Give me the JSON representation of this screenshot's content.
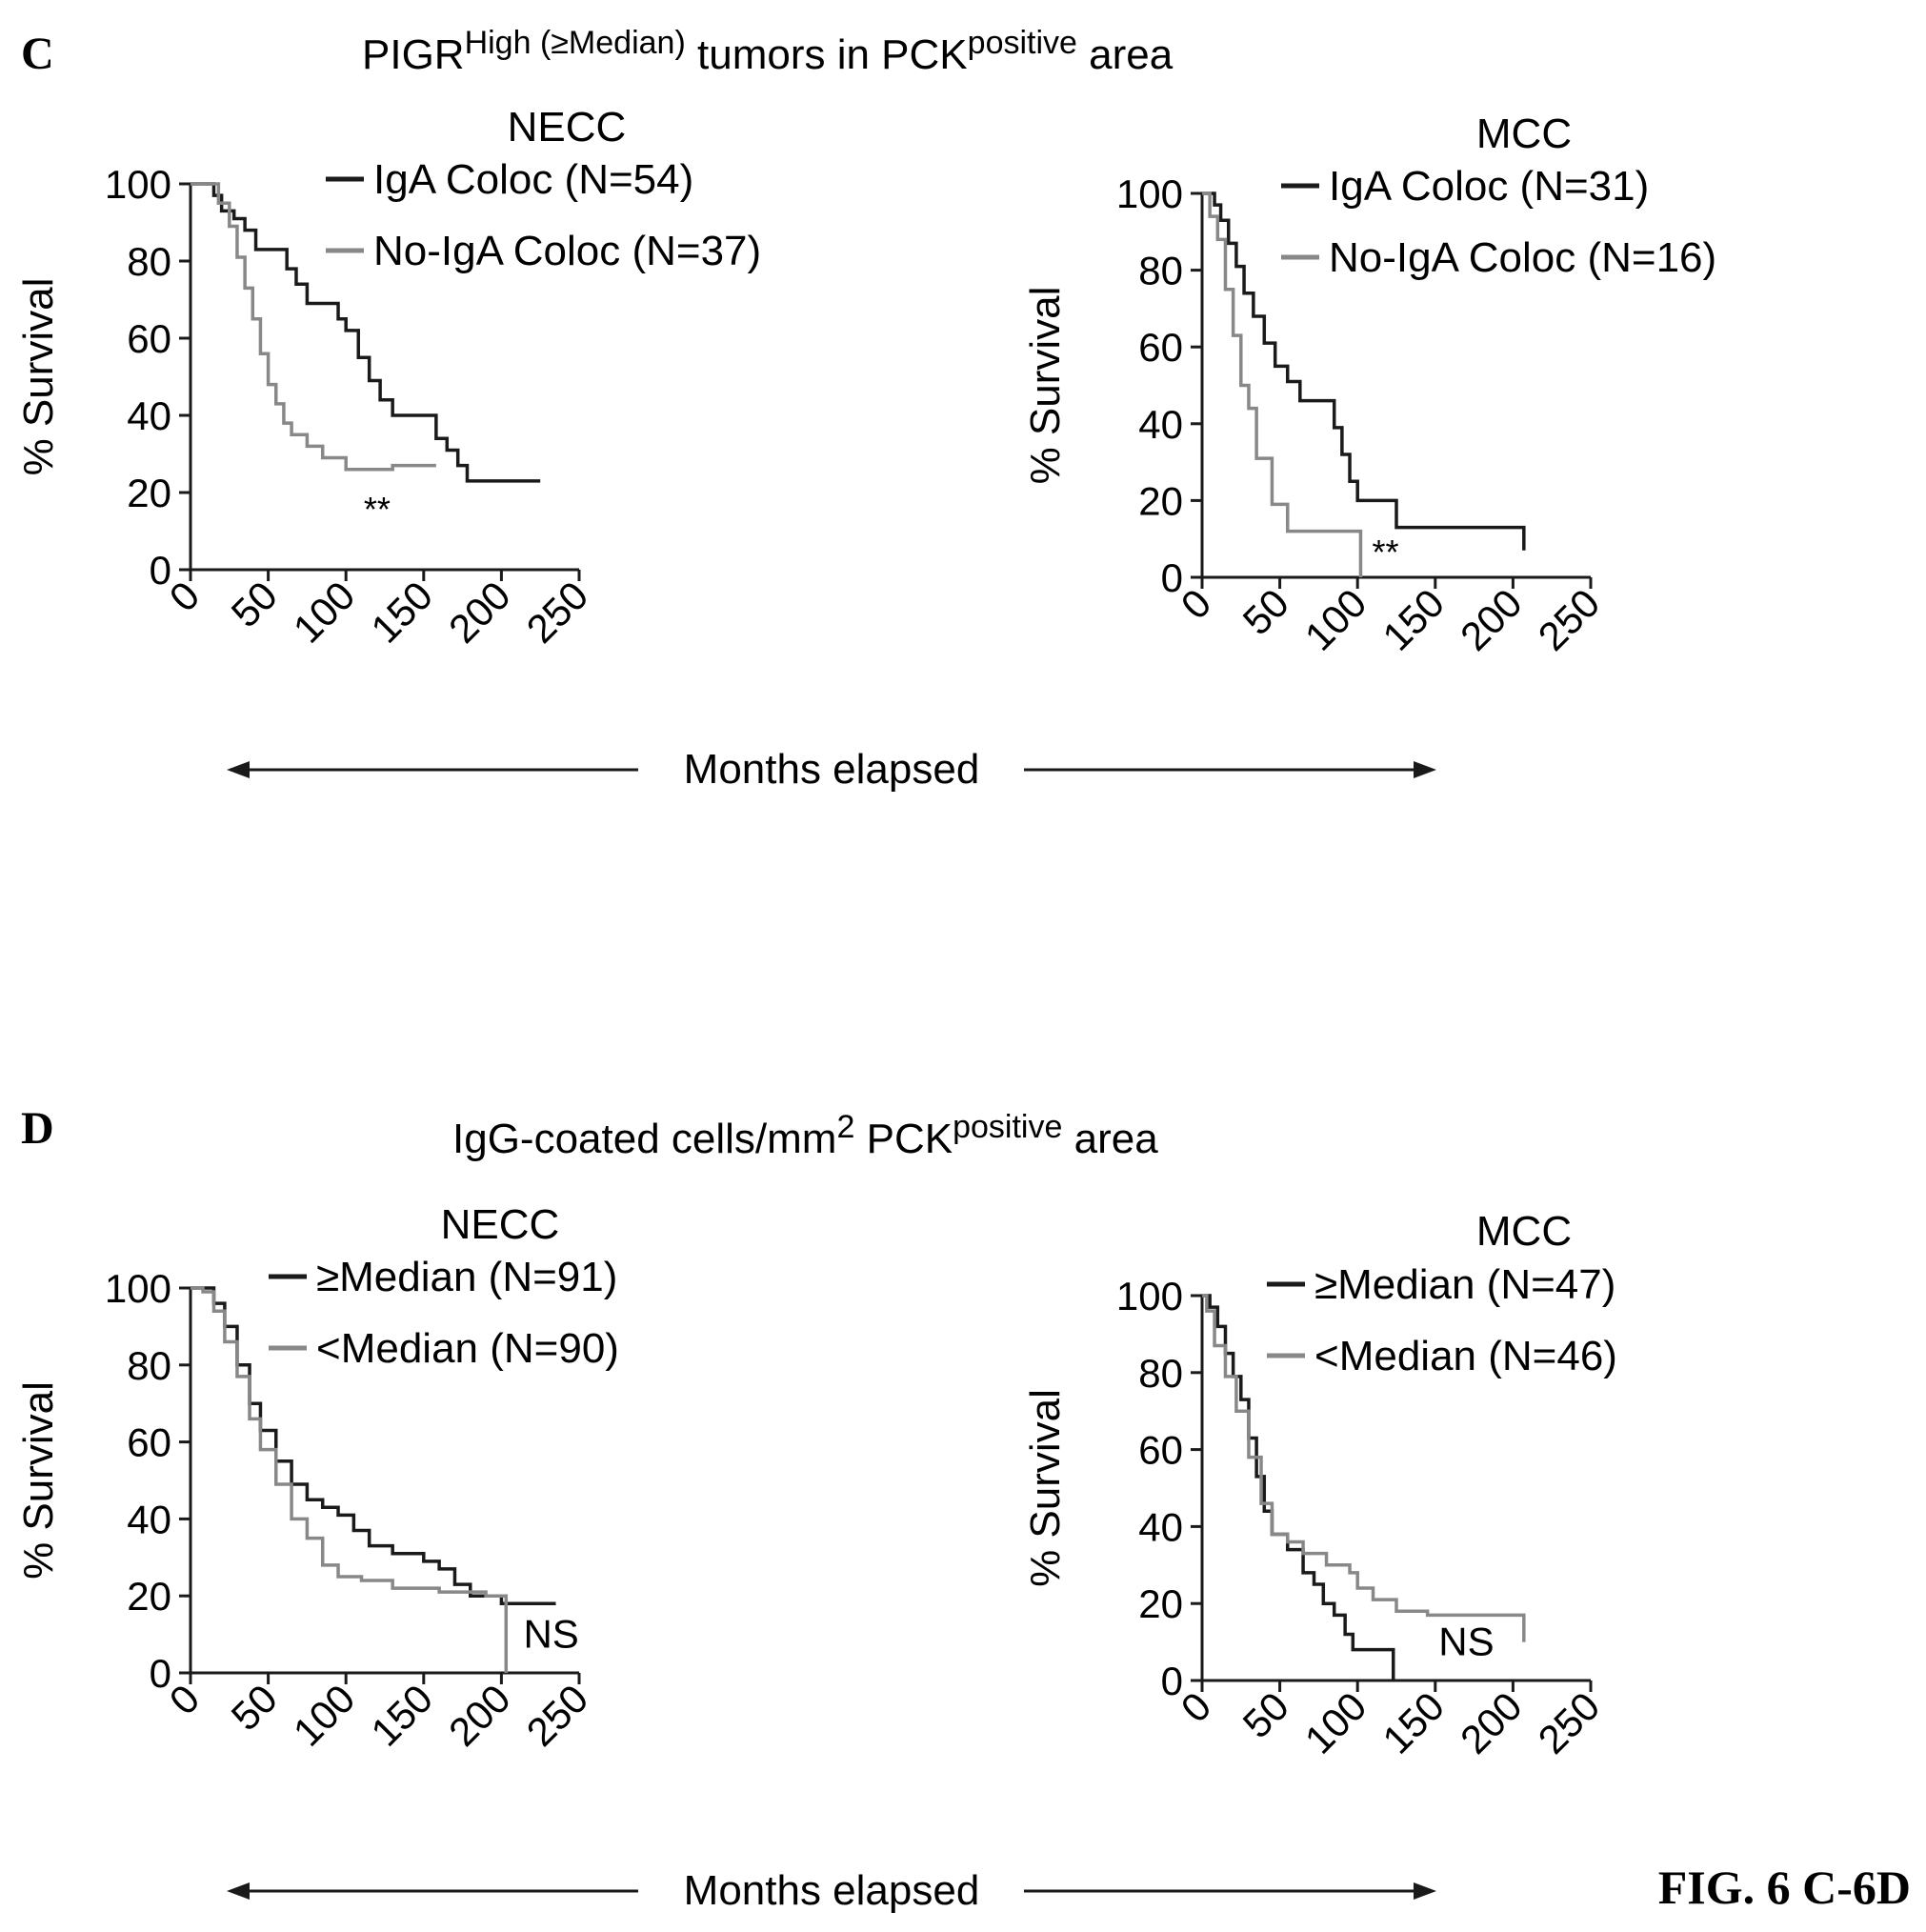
{
  "panels": {
    "c": {
      "letter": "C",
      "title": {
        "main": "PIGR",
        "sup": "High (≥Median)",
        "mid": " tumors in PCK",
        "sup2": "positive",
        "end": " area"
      }
    },
    "d": {
      "letter": "D",
      "title": {
        "main": "IgG-coated cells/mm",
        "sup": "2",
        "mid": " PCK",
        "sup2": "positive",
        "end": " area"
      }
    }
  },
  "shared_xlabel": "Months elapsed",
  "figure_label": "FIG. 6 C-6D",
  "colors": {
    "dark": "#1a1a1a",
    "gray": "#888888"
  },
  "chart_data": [
    {
      "type": "line",
      "subtitle": "NECC",
      "ylabel": "% Survival",
      "xlim": [
        0,
        250
      ],
      "ylim": [
        0,
        100
      ],
      "xticks": [
        "0",
        "50",
        "100",
        "150",
        "200",
        "250"
      ],
      "yticks": [
        "0",
        "20",
        "40",
        "60",
        "80",
        "100"
      ],
      "annotation": {
        "text": "**",
        "x": 120,
        "y": 16
      },
      "series": [
        {
          "name": "IgA Coloc (N=54)",
          "color": "dark",
          "points": [
            [
              0,
              100
            ],
            [
              10,
              100
            ],
            [
              15,
              97
            ],
            [
              20,
              93
            ],
            [
              28,
              91
            ],
            [
              35,
              88
            ],
            [
              42,
              83
            ],
            [
              55,
              83
            ],
            [
              62,
              78
            ],
            [
              68,
              74
            ],
            [
              75,
              69
            ],
            [
              90,
              69
            ],
            [
              95,
              65
            ],
            [
              100,
              62
            ],
            [
              108,
              55
            ],
            [
              115,
              49
            ],
            [
              122,
              44
            ],
            [
              130,
              40
            ],
            [
              140,
              40
            ],
            [
              150,
              40
            ],
            [
              158,
              34
            ],
            [
              165,
              31
            ],
            [
              172,
              27
            ],
            [
              178,
              23
            ],
            [
              225,
              23
            ]
          ]
        },
        {
          "name": "No-IgA Coloc (N=37)",
          "color": "gray",
          "points": [
            [
              0,
              100
            ],
            [
              10,
              100
            ],
            [
              18,
              95
            ],
            [
              25,
              89
            ],
            [
              30,
              81
            ],
            [
              35,
              73
            ],
            [
              40,
              65
            ],
            [
              45,
              56
            ],
            [
              50,
              48
            ],
            [
              55,
              43
            ],
            [
              60,
              38
            ],
            [
              65,
              35
            ],
            [
              75,
              32
            ],
            [
              85,
              29
            ],
            [
              100,
              26
            ],
            [
              120,
              26
            ],
            [
              130,
              27
            ],
            [
              158,
              27
            ]
          ]
        }
      ]
    },
    {
      "type": "line",
      "subtitle": "MCC",
      "ylabel": "% Survival",
      "xlim": [
        0,
        250
      ],
      "ylim": [
        0,
        100
      ],
      "xticks": [
        "0",
        "50",
        "100",
        "150",
        "200",
        "250"
      ],
      "yticks": [
        "0",
        "20",
        "40",
        "60",
        "80",
        "100"
      ],
      "annotation": {
        "text": "**",
        "x": 118,
        "y": 7
      },
      "series": [
        {
          "name": "IgA Coloc (N=31)",
          "color": "dark",
          "points": [
            [
              0,
              100
            ],
            [
              8,
              97
            ],
            [
              12,
              93
            ],
            [
              17,
              87
            ],
            [
              22,
              81
            ],
            [
              27,
              74
            ],
            [
              33,
              68
            ],
            [
              40,
              61
            ],
            [
              47,
              55
            ],
            [
              55,
              51
            ],
            [
              63,
              46
            ],
            [
              80,
              46
            ],
            [
              85,
              39
            ],
            [
              90,
              32
            ],
            [
              95,
              25
            ],
            [
              100,
              20
            ],
            [
              120,
              20
            ],
            [
              125,
              13
            ],
            [
              205,
              13
            ],
            [
              207,
              7
            ]
          ]
        },
        {
          "name": "No-IgA Coloc (N=16)",
          "color": "gray",
          "points": [
            [
              0,
              100
            ],
            [
              5,
              94
            ],
            [
              10,
              88
            ],
            [
              15,
              75
            ],
            [
              20,
              63
            ],
            [
              25,
              50
            ],
            [
              30,
              44
            ],
            [
              35,
              31
            ],
            [
              45,
              19
            ],
            [
              55,
              12
            ],
            [
              80,
              12
            ],
            [
              85,
              12
            ],
            [
              100,
              12
            ],
            [
              102,
              0
            ]
          ]
        }
      ]
    },
    {
      "type": "line",
      "subtitle": "NECC",
      "ylabel": "% Survival",
      "xlim": [
        0,
        250
      ],
      "ylim": [
        0,
        100
      ],
      "xticks": [
        "0",
        "50",
        "100",
        "150",
        "200",
        "250"
      ],
      "yticks": [
        "0",
        "20",
        "40",
        "60",
        "80",
        "100"
      ],
      "annotation": {
        "text": "NS",
        "x": 232,
        "y": 10
      },
      "series": [
        {
          "name": "≥Median (N=91)",
          "color": "dark",
          "points": [
            [
              0,
              100
            ],
            [
              8,
              100
            ],
            [
              15,
              96
            ],
            [
              22,
              90
            ],
            [
              30,
              80
            ],
            [
              38,
              70
            ],
            [
              45,
              63
            ],
            [
              55,
              55
            ],
            [
              65,
              49
            ],
            [
              75,
              45
            ],
            [
              85,
              43
            ],
            [
              95,
              41
            ],
            [
              105,
              37
            ],
            [
              115,
              33
            ],
            [
              130,
              31
            ],
            [
              150,
              29
            ],
            [
              160,
              27
            ],
            [
              170,
              23
            ],
            [
              180,
              20
            ],
            [
              200,
              18
            ],
            [
              215,
              18
            ],
            [
              235,
              18
            ]
          ]
        },
        {
          "name": "<Median (N=90)",
          "color": "gray",
          "points": [
            [
              0,
              100
            ],
            [
              8,
              99
            ],
            [
              15,
              94
            ],
            [
              22,
              86
            ],
            [
              30,
              77
            ],
            [
              38,
              66
            ],
            [
              45,
              58
            ],
            [
              55,
              49
            ],
            [
              65,
              40
            ],
            [
              75,
              35
            ],
            [
              85,
              28
            ],
            [
              95,
              25
            ],
            [
              110,
              24
            ],
            [
              130,
              22
            ],
            [
              160,
              21
            ],
            [
              190,
              20
            ],
            [
              203,
              20
            ],
            [
              203,
              0
            ]
          ]
        }
      ]
    },
    {
      "type": "line",
      "subtitle": "MCC",
      "ylabel": "% Survival",
      "xlim": [
        0,
        250
      ],
      "ylim": [
        0,
        100
      ],
      "xticks": [
        "0",
        "50",
        "100",
        "150",
        "200",
        "250"
      ],
      "yticks": [
        "0",
        "20",
        "40",
        "60",
        "80",
        "100"
      ],
      "annotation": {
        "text": "NS",
        "x": 170,
        "y": 10
      },
      "series": [
        {
          "name": "≥Median (N=47)",
          "color": "dark",
          "points": [
            [
              0,
              100
            ],
            [
              5,
              97
            ],
            [
              10,
              92
            ],
            [
              15,
              85
            ],
            [
              20,
              79
            ],
            [
              25,
              73
            ],
            [
              30,
              63
            ],
            [
              35,
              53
            ],
            [
              40,
              44
            ],
            [
              45,
              38
            ],
            [
              55,
              34
            ],
            [
              65,
              28
            ],
            [
              72,
              25
            ],
            [
              78,
              20
            ],
            [
              85,
              17
            ],
            [
              92,
              12
            ],
            [
              97,
              8
            ],
            [
              115,
              8
            ],
            [
              123,
              4
            ],
            [
              123,
              0
            ]
          ]
        },
        {
          "name": "<Median (N=46)",
          "color": "gray",
          "points": [
            [
              0,
              100
            ],
            [
              3,
              96
            ],
            [
              8,
              87
            ],
            [
              15,
              79
            ],
            [
              22,
              70
            ],
            [
              30,
              58
            ],
            [
              38,
              46
            ],
            [
              45,
              38
            ],
            [
              55,
              36
            ],
            [
              65,
              33
            ],
            [
              80,
              30
            ],
            [
              95,
              28
            ],
            [
              100,
              24
            ],
            [
              110,
              21
            ],
            [
              125,
              18
            ],
            [
              145,
              17
            ],
            [
              205,
              17
            ],
            [
              207,
              10
            ]
          ]
        }
      ]
    }
  ]
}
